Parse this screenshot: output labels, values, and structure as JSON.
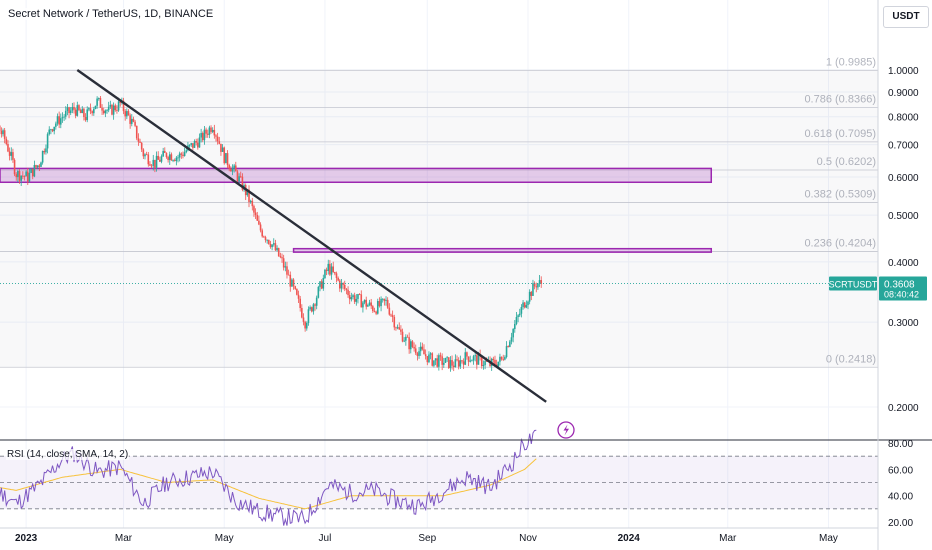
{
  "header": {
    "title": "Secret Network / TetherUS, 1D, BINANCE",
    "currency": "USDT"
  },
  "colors": {
    "up": "#26a69a",
    "down": "#ef5350",
    "trendline": "#2a2e39",
    "zone_stroke": "#9c27b0",
    "zone_fill": "rgba(156,39,176,0.22)",
    "fib_text": "#b2b5be",
    "rsi_line": "#7e57c2",
    "rsi_ma": "#f7c23b",
    "rsi_band": "rgba(126,87,194,0.08)",
    "price_tag": "#26a69a",
    "grid": "#f0f3fa"
  },
  "price_label": {
    "symbol": "SCRTUSDT",
    "price": "0.3608",
    "countdown": "08:40:42"
  },
  "rsi_label": "RSI (14, close, SMA, 14, 2)",
  "icons": {
    "alert": "lightning-icon"
  },
  "chart_data": [
    {
      "type": "candlestick",
      "title": "Secret Network / TetherUS, 1D, BINANCE",
      "y_scale": "log",
      "ylim": [
        0.18,
        1.1
      ],
      "y_ticks": [
        "1.0000",
        "0.9000",
        "0.8000",
        "0.7000",
        "0.6000",
        "0.5000",
        "0.4000",
        "0.3000",
        "0.2000"
      ],
      "y_tick_values": [
        1.0,
        0.9,
        0.8,
        0.7,
        0.6,
        0.5,
        0.4,
        0.3,
        0.2
      ],
      "x_ticks": [
        "2023",
        "Mar",
        "May",
        "Jul",
        "Sep",
        "Nov",
        "2024",
        "Mar",
        "May"
      ],
      "x_tick_dates": [
        "2023-01-01",
        "2023-03-01",
        "2023-05-01",
        "2023-07-01",
        "2023-09-01",
        "2023-11-01",
        "2024-01-01",
        "2024-03-01",
        "2024-05-01"
      ],
      "x_range": [
        "2022-11-28",
        "2024-05-31"
      ],
      "closes_weekly": [
        [
          "2022-11-28",
          0.8
        ],
        [
          "2022-12-05",
          0.86
        ],
        [
          "2022-12-12",
          0.79
        ],
        [
          "2022-12-19",
          0.72
        ],
        [
          "2022-12-26",
          0.61
        ],
        [
          "2023-01-02",
          0.6
        ],
        [
          "2023-01-09",
          0.64
        ],
        [
          "2023-01-16",
          0.76
        ],
        [
          "2023-01-23",
          0.8
        ],
        [
          "2023-01-30",
          0.83
        ],
        [
          "2023-02-06",
          0.8
        ],
        [
          "2023-02-13",
          0.86
        ],
        [
          "2023-02-20",
          0.82
        ],
        [
          "2023-02-27",
          0.85
        ],
        [
          "2023-03-06",
          0.78
        ],
        [
          "2023-03-13",
          0.67
        ],
        [
          "2023-03-20",
          0.64
        ],
        [
          "2023-03-27",
          0.67
        ],
        [
          "2023-04-03",
          0.66
        ],
        [
          "2023-04-10",
          0.69
        ],
        [
          "2023-04-17",
          0.72
        ],
        [
          "2023-04-24",
          0.77
        ],
        [
          "2023-05-01",
          0.66
        ],
        [
          "2023-05-08",
          0.61
        ],
        [
          "2023-05-15",
          0.55
        ],
        [
          "2023-05-22",
          0.47
        ],
        [
          "2023-05-29",
          0.44
        ],
        [
          "2023-06-05",
          0.4
        ],
        [
          "2023-06-12",
          0.35
        ],
        [
          "2023-06-19",
          0.3
        ],
        [
          "2023-06-26",
          0.34
        ],
        [
          "2023-07-03",
          0.39
        ],
        [
          "2023-07-10",
          0.36
        ],
        [
          "2023-07-17",
          0.34
        ],
        [
          "2023-07-24",
          0.33
        ],
        [
          "2023-07-31",
          0.32
        ],
        [
          "2023-08-07",
          0.33
        ],
        [
          "2023-08-14",
          0.29
        ],
        [
          "2023-08-21",
          0.27
        ],
        [
          "2023-08-28",
          0.26
        ],
        [
          "2023-09-04",
          0.25
        ],
        [
          "2023-09-11",
          0.248
        ],
        [
          "2023-09-18",
          0.245
        ],
        [
          "2023-09-25",
          0.255
        ],
        [
          "2023-10-02",
          0.25
        ],
        [
          "2023-10-09",
          0.245
        ],
        [
          "2023-10-16",
          0.25
        ],
        [
          "2023-10-23",
          0.29
        ],
        [
          "2023-10-30",
          0.33
        ],
        [
          "2023-11-06",
          0.3608
        ]
      ],
      "fib_levels": [
        {
          "label": "1 (0.9985)",
          "value": 0.9985
        },
        {
          "label": "0.786 (0.8366)",
          "value": 0.8366
        },
        {
          "label": "0.618 (0.7095)",
          "value": 0.7095
        },
        {
          "label": "0.5 (0.6202)",
          "value": 0.6202
        },
        {
          "label": "0.382 (0.5309)",
          "value": 0.5309
        },
        {
          "label": "0.236 (0.4204)",
          "value": 0.4204
        },
        {
          "label": "0 (0.2418)",
          "value": 0.2418
        }
      ],
      "zones": [
        {
          "from": "2022-11-28",
          "to": "2024-02-20",
          "low": 0.585,
          "high": 0.625
        },
        {
          "from": "2023-06-12",
          "to": "2024-02-20",
          "low": 0.419,
          "high": 0.426
        }
      ],
      "trendline": {
        "from": [
          "2023-02-01",
          1.0
        ],
        "to": [
          "2023-11-12",
          0.205
        ]
      },
      "current_price": 0.3608
    },
    {
      "type": "line",
      "title": "RSI (14, close, SMA, 14, 2)",
      "ylim": [
        16,
        86
      ],
      "y_ticks": [
        "80.00",
        "60.00",
        "40.00",
        "20.00"
      ],
      "y_tick_values": [
        80,
        60,
        40,
        20
      ],
      "bands": [
        70,
        50,
        30
      ],
      "series": [
        {
          "name": "RSI",
          "values": [
            [
              "2022-11-28",
              52
            ],
            [
              "2022-12-12",
              46
            ],
            [
              "2022-12-26",
              34
            ],
            [
              "2023-01-09",
              48
            ],
            [
              "2023-01-23",
              68
            ],
            [
              "2023-01-30",
              72
            ],
            [
              "2023-02-13",
              58
            ],
            [
              "2023-02-27",
              62
            ],
            [
              "2023-03-13",
              34
            ],
            [
              "2023-03-27",
              50
            ],
            [
              "2023-04-10",
              54
            ],
            [
              "2023-04-24",
              58
            ],
            [
              "2023-05-08",
              36
            ],
            [
              "2023-05-22",
              28
            ],
            [
              "2023-06-05",
              24
            ],
            [
              "2023-06-19",
              22
            ],
            [
              "2023-07-03",
              48
            ],
            [
              "2023-07-17",
              42
            ],
            [
              "2023-07-31",
              44
            ],
            [
              "2023-08-14",
              36
            ],
            [
              "2023-08-28",
              32
            ],
            [
              "2023-09-11",
              44
            ],
            [
              "2023-09-25",
              54
            ],
            [
              "2023-10-09",
              46
            ],
            [
              "2023-10-23",
              66
            ],
            [
              "2023-10-30",
              80
            ],
            [
              "2023-11-06",
              84
            ]
          ]
        },
        {
          "name": "RSI-based MA",
          "values": [
            [
              "2022-11-28",
              50
            ],
            [
              "2022-12-26",
              44
            ],
            [
              "2023-01-23",
              54
            ],
            [
              "2023-02-27",
              60
            ],
            [
              "2023-03-27",
              50
            ],
            [
              "2023-04-24",
              52
            ],
            [
              "2023-05-22",
              38
            ],
            [
              "2023-06-19",
              30
            ],
            [
              "2023-07-17",
              40
            ],
            [
              "2023-08-14",
              40
            ],
            [
              "2023-09-11",
              40
            ],
            [
              "2023-10-09",
              48
            ],
            [
              "2023-10-30",
              60
            ],
            [
              "2023-11-06",
              68
            ]
          ]
        }
      ]
    }
  ]
}
